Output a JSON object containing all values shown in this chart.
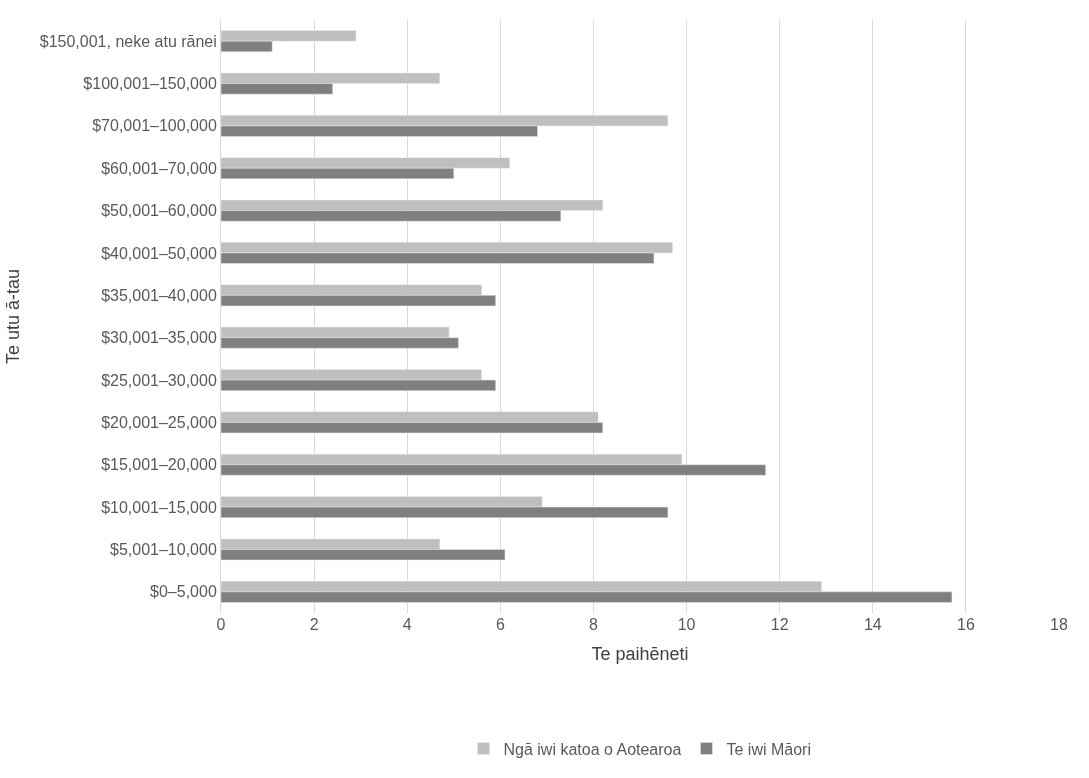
{
  "chart_data": {
    "type": "bar",
    "orientation": "horizontal",
    "xlabel": "Te paihēneti",
    "ylabel": "Te utu ā-tau",
    "categories": [
      "$150,001, neke atu rānei",
      "$100,001–150,000",
      "$70,001–100,000",
      "$60,001–70,000",
      "$50,001–60,000",
      "$40,001–50,000",
      "$35,001–40,000",
      "$30,001–35,000",
      "$25,001–30,000",
      "$20,001–25,000",
      "$15,001–20,000",
      "$10,001–15,000",
      "$5,001–10,000",
      "$0–5,000"
    ],
    "series": [
      {
        "name": "Ngā iwi katoa o Aotearoa",
        "color": "#bfbfbf",
        "values": [
          2.9,
          4.7,
          9.6,
          6.2,
          8.2,
          9.7,
          5.6,
          4.9,
          5.6,
          8.1,
          9.9,
          6.9,
          4.7,
          12.9
        ]
      },
      {
        "name": "Te iwi Māori",
        "color": "#7f7f7f",
        "values": [
          1.1,
          2.4,
          6.8,
          5.0,
          7.3,
          9.3,
          5.9,
          5.1,
          5.9,
          8.2,
          11.7,
          9.6,
          6.1,
          15.7
        ]
      }
    ],
    "xlim": [
      0,
      18
    ],
    "xticks": [
      0,
      2,
      4,
      6,
      8,
      10,
      12,
      14,
      16,
      18
    ],
    "grid": "x",
    "legend": "bottom"
  }
}
